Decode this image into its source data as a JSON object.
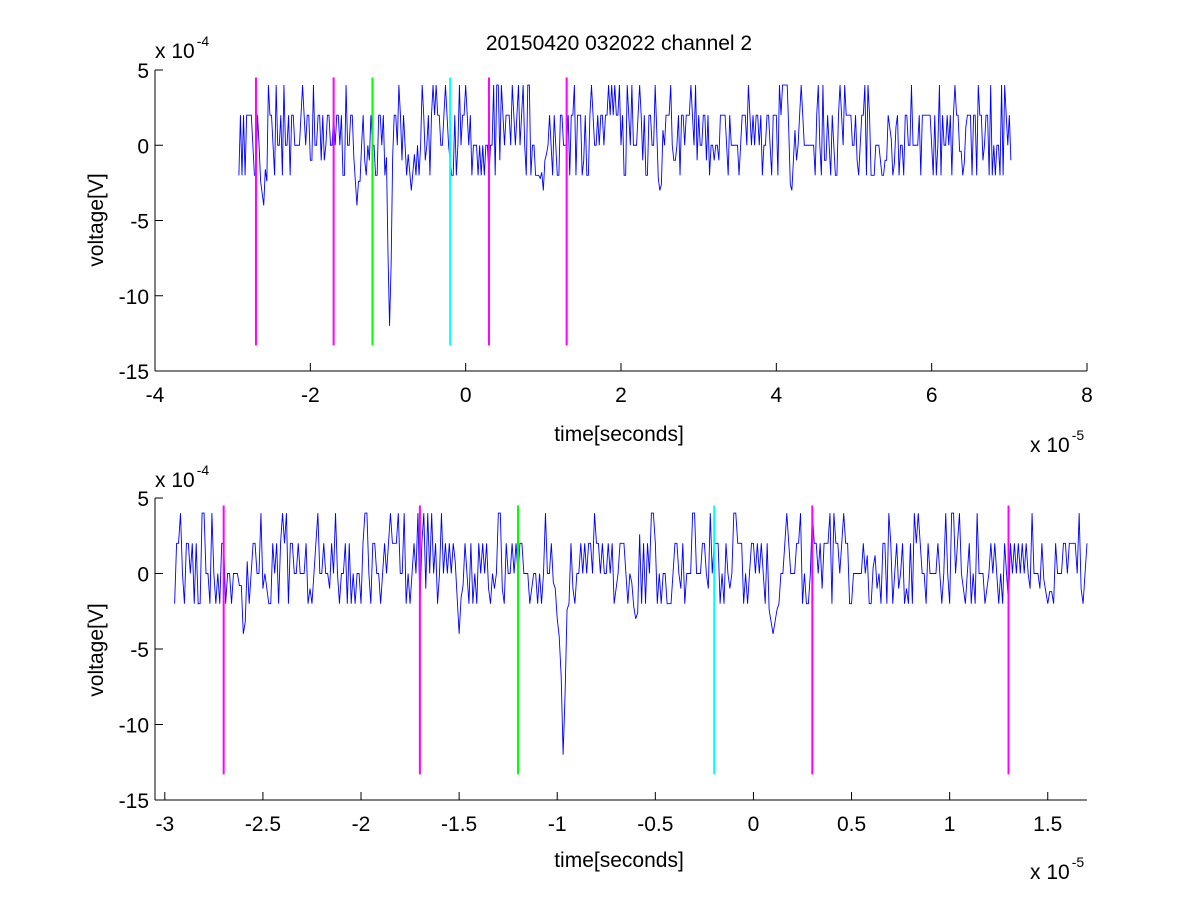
{
  "figure": {
    "title": "20150420 032022 channel 2",
    "colors": {
      "signal": "#0000ff",
      "magenta": "#ff00ff",
      "green": "#00ff00",
      "cyan": "#00ffff",
      "axes": "#000000"
    }
  },
  "chart_data": [
    {
      "type": "line",
      "title": "20150420 032022 channel 2",
      "xlabel": "time[seconds]",
      "ylabel": "voltage[V]",
      "x_exponent_label": "x 10",
      "x_exponent": "-5",
      "y_exponent_label": "x 10",
      "y_exponent": "-4",
      "xlim": [
        -4,
        8
      ],
      "ylim": [
        -15,
        5
      ],
      "xticks": [
        -4,
        -2,
        0,
        2,
        4,
        6,
        8
      ],
      "xtick_labels": [
        "-4",
        "-2",
        "0",
        "2",
        "4",
        "6",
        "8"
      ],
      "yticks": [
        -15,
        -10,
        -5,
        0,
        5
      ],
      "ytick_labels": [
        "-15",
        "-10",
        "-5",
        "0",
        "5"
      ],
      "grid": false,
      "series": [
        {
          "color": "#0000ff",
          "sample_interval": 0.02,
          "x_start": -2.92,
          "x_end": 7.02,
          "y_levels": [
            -2,
            0,
            2,
            4
          ],
          "dips": [
            [
              -2.6,
              -4
            ],
            [
              -1.4,
              -4
            ],
            [
              -0.98,
              -12
            ],
            [
              -0.7,
              -3
            ],
            [
              1.0,
              -3
            ],
            [
              2.5,
              -3
            ],
            [
              4.2,
              -3
            ],
            [
              5.5,
              -2
            ],
            [
              6.4,
              -2
            ]
          ]
        }
      ],
      "markers": [
        {
          "x": -2.7,
          "color": "#ff00ff",
          "y_range": [
            -13.3,
            4.5
          ]
        },
        {
          "x": -1.7,
          "color": "#ff00ff",
          "y_range": [
            -13.3,
            4.5
          ]
        },
        {
          "x": -1.2,
          "color": "#00ff00",
          "y_range": [
            -13.3,
            4.5
          ]
        },
        {
          "x": -0.2,
          "color": "#00ffff",
          "y_range": [
            -13.3,
            4.5
          ]
        },
        {
          "x": 0.3,
          "color": "#ff00ff",
          "y_range": [
            -13.3,
            4.5
          ]
        },
        {
          "x": 1.3,
          "color": "#ff00ff",
          "y_range": [
            -13.3,
            4.5
          ]
        }
      ]
    },
    {
      "type": "line",
      "title": "",
      "xlabel": "time[seconds]",
      "ylabel": "voltage[V]",
      "x_exponent_label": "x 10",
      "x_exponent": "-5",
      "y_exponent_label": "x 10",
      "y_exponent": "-4",
      "xlim": [
        -3.05,
        1.7
      ],
      "ylim": [
        -15,
        5
      ],
      "xticks": [
        -3,
        -2.5,
        -2,
        -1.5,
        -1,
        -0.5,
        0,
        0.5,
        1,
        1.5
      ],
      "xtick_labels": [
        "-3",
        "-2.5",
        "-2",
        "-1.5",
        "-1",
        "-0.5",
        "0",
        "0.5",
        "1",
        "1.5"
      ],
      "yticks": [
        -15,
        -10,
        -5,
        0,
        5
      ],
      "ytick_labels": [
        "-15",
        "-10",
        "-5",
        "0",
        "5"
      ],
      "grid": false,
      "series": [
        {
          "color": "#0000ff",
          "sample_interval": 0.01,
          "x_start": -2.95,
          "x_end": 1.7,
          "y_levels": [
            -2,
            0,
            2,
            4
          ],
          "dips": [
            [
              -2.6,
              -4
            ],
            [
              -1.5,
              -4
            ],
            [
              -1.0,
              -3
            ],
            [
              -0.97,
              -12
            ],
            [
              0.1,
              -4
            ],
            [
              -0.6,
              -3
            ],
            [
              0.6,
              -2
            ],
            [
              1.5,
              -2
            ]
          ]
        }
      ],
      "markers": [
        {
          "x": -2.7,
          "color": "#ff00ff",
          "y_range": [
            -13.3,
            4.5
          ]
        },
        {
          "x": -1.7,
          "color": "#ff00ff",
          "y_range": [
            -13.3,
            4.5
          ]
        },
        {
          "x": -1.2,
          "color": "#00ff00",
          "y_range": [
            -13.3,
            4.5
          ]
        },
        {
          "x": -0.2,
          "color": "#00ffff",
          "y_range": [
            -13.3,
            4.5
          ]
        },
        {
          "x": 0.3,
          "color": "#ff00ff",
          "y_range": [
            -13.3,
            4.5
          ]
        },
        {
          "x": 1.3,
          "color": "#ff00ff",
          "y_range": [
            -13.3,
            4.5
          ]
        }
      ]
    }
  ]
}
